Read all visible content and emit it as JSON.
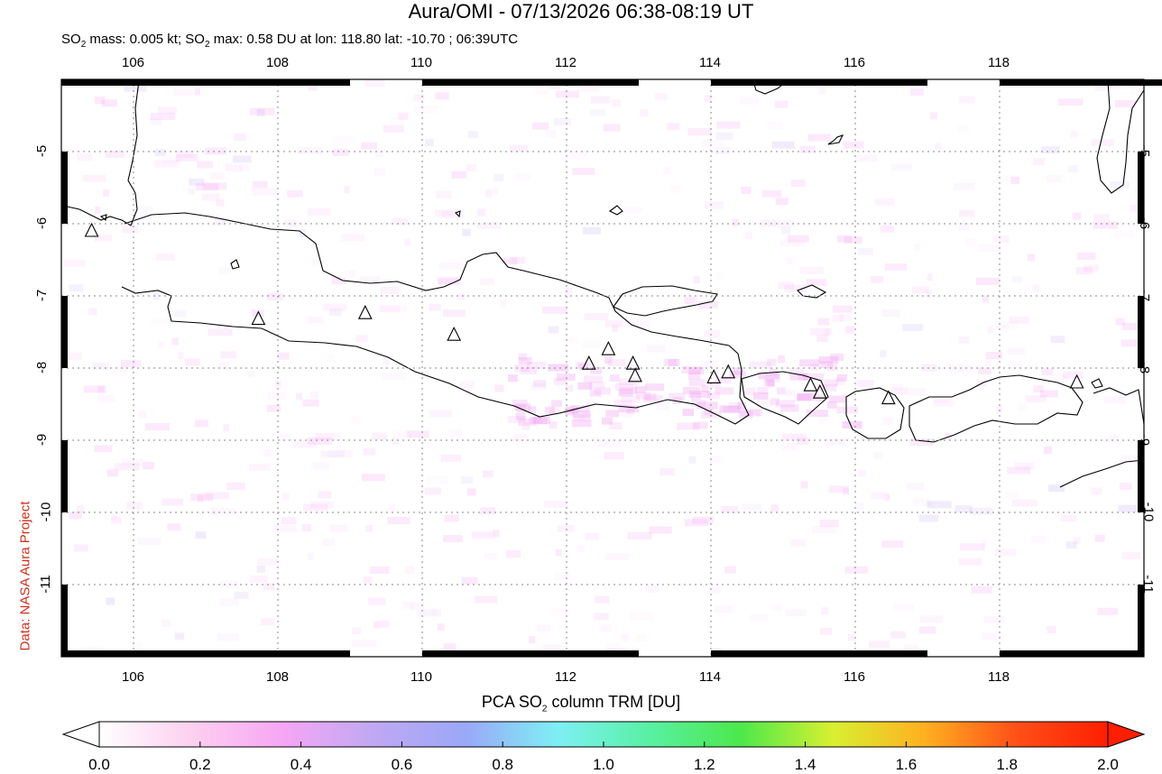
{
  "header": {
    "title": "Aura/OMI - 07/13/2026 06:38-08:19 UT",
    "subtitle_parts": [
      "SO",
      "2",
      " mass: 0.005 kt; SO",
      "2",
      " max: 0.58 DU at lon: 118.80 lat: -10.70 ; 06:39UTC"
    ]
  },
  "credit": "Data: NASA Aura Project",
  "map": {
    "lon_range": [
      105.0,
      120.0
    ],
    "lat_range": [
      -12.0,
      -4.0
    ],
    "lon_ticks": [
      "106",
      "108",
      "110",
      "112",
      "114",
      "116",
      "118"
    ],
    "lat_ticks": [
      "-5",
      "-6",
      "-7",
      "-8",
      "-9",
      "-10",
      "-11"
    ],
    "grid": "dotted",
    "volcanoes": [
      {
        "lon": 105.42,
        "lat": -6.1
      },
      {
        "lon": 107.73,
        "lat": -7.32
      },
      {
        "lon": 109.21,
        "lat": -7.24
      },
      {
        "lon": 110.44,
        "lat": -7.54
      },
      {
        "lon": 112.31,
        "lat": -7.94
      },
      {
        "lon": 112.58,
        "lat": -7.74
      },
      {
        "lon": 112.92,
        "lat": -7.94
      },
      {
        "lon": 112.95,
        "lat": -8.11
      },
      {
        "lon": 114.04,
        "lat": -8.13
      },
      {
        "lon": 114.24,
        "lat": -8.06
      },
      {
        "lon": 115.38,
        "lat": -8.24
      },
      {
        "lon": 115.51,
        "lat": -8.34
      },
      {
        "lon": 116.46,
        "lat": -8.42
      },
      {
        "lon": 119.07,
        "lat": -8.2
      }
    ]
  },
  "colorbar": {
    "title_parts": [
      "PCA SO",
      "2",
      " column TRM [DU]"
    ],
    "labels": [
      "0.0",
      "0.2",
      "0.4",
      "0.6",
      "0.8",
      "1.0",
      "1.2",
      "1.4",
      "1.6",
      "1.8",
      "2.0"
    ],
    "min_color": "#ffffff",
    "max_color": "#ff1e00",
    "stops": [
      "#ffffff",
      "#fcd0f0",
      "#f6a6f4",
      "#bfa8f2",
      "#9aa8f8",
      "#7ef0f4",
      "#58f0a4",
      "#4ce84c",
      "#d8f030",
      "#ffb020",
      "#ff5018",
      "#ff1e00"
    ]
  }
}
